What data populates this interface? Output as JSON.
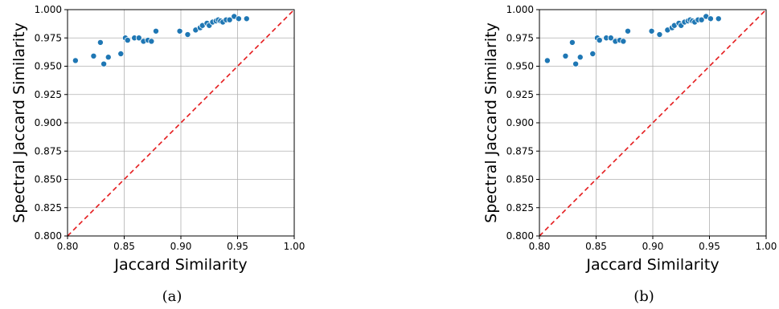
{
  "figure": {
    "panels": [
      {
        "caption": "(a)"
      },
      {
        "caption": "(b)"
      }
    ]
  },
  "chart_data": [
    {
      "type": "scatter",
      "xlabel": "Jaccard Similarity",
      "ylabel": "Spectral Jaccard Similarity",
      "xlim": [
        0.8,
        1.0
      ],
      "ylim": [
        0.8,
        1.0
      ],
      "xticks": [
        "0.80",
        "0.85",
        "0.90",
        "0.95",
        "1.00"
      ],
      "yticks": [
        "0.800",
        "0.825",
        "0.850",
        "0.875",
        "0.900",
        "0.925",
        "0.950",
        "0.975",
        "1.000"
      ],
      "grid": true,
      "point_color": "#1f77b4",
      "reference_line": {
        "style": "dashed",
        "color": "#e41a1c",
        "from": [
          0.8,
          0.8
        ],
        "to": [
          1.0,
          1.0
        ]
      },
      "points": [
        [
          0.807,
          0.955
        ],
        [
          0.823,
          0.959
        ],
        [
          0.829,
          0.971
        ],
        [
          0.832,
          0.952
        ],
        [
          0.836,
          0.958
        ],
        [
          0.847,
          0.961
        ],
        [
          0.851,
          0.975
        ],
        [
          0.853,
          0.973
        ],
        [
          0.859,
          0.975
        ],
        [
          0.863,
          0.975
        ],
        [
          0.867,
          0.972
        ],
        [
          0.871,
          0.973
        ],
        [
          0.874,
          0.972
        ],
        [
          0.878,
          0.981
        ],
        [
          0.899,
          0.981
        ],
        [
          0.906,
          0.978
        ],
        [
          0.913,
          0.982
        ],
        [
          0.917,
          0.984
        ],
        [
          0.919,
          0.986
        ],
        [
          0.923,
          0.988
        ],
        [
          0.925,
          0.986
        ],
        [
          0.928,
          0.989
        ],
        [
          0.931,
          0.99
        ],
        [
          0.933,
          0.991
        ],
        [
          0.935,
          0.99
        ],
        [
          0.937,
          0.989
        ],
        [
          0.94,
          0.991
        ],
        [
          0.943,
          0.991
        ],
        [
          0.947,
          0.994
        ],
        [
          0.951,
          0.992
        ],
        [
          0.958,
          0.992
        ]
      ]
    },
    {
      "type": "scatter",
      "xlabel": "Jaccard Similarity",
      "ylabel": "Spectral Jaccard Similarity",
      "xlim": [
        0.8,
        1.0
      ],
      "ylim": [
        0.8,
        1.0
      ],
      "xticks": [
        "0.80",
        "0.85",
        "0.90",
        "0.95",
        "1.00"
      ],
      "yticks": [
        "0.800",
        "0.825",
        "0.850",
        "0.875",
        "0.900",
        "0.925",
        "0.950",
        "0.975",
        "1.000"
      ],
      "grid": true,
      "point_color": "#1f77b4",
      "reference_line": {
        "style": "dashed",
        "color": "#e41a1c",
        "from": [
          0.8,
          0.8
        ],
        "to": [
          1.0,
          1.0
        ]
      },
      "points": [
        [
          0.807,
          0.955
        ],
        [
          0.823,
          0.959
        ],
        [
          0.829,
          0.971
        ],
        [
          0.832,
          0.952
        ],
        [
          0.836,
          0.958
        ],
        [
          0.847,
          0.961
        ],
        [
          0.851,
          0.975
        ],
        [
          0.853,
          0.973
        ],
        [
          0.859,
          0.975
        ],
        [
          0.863,
          0.975
        ],
        [
          0.867,
          0.972
        ],
        [
          0.871,
          0.973
        ],
        [
          0.874,
          0.972
        ],
        [
          0.878,
          0.981
        ],
        [
          0.899,
          0.981
        ],
        [
          0.906,
          0.978
        ],
        [
          0.913,
          0.982
        ],
        [
          0.917,
          0.984
        ],
        [
          0.919,
          0.986
        ],
        [
          0.923,
          0.988
        ],
        [
          0.925,
          0.986
        ],
        [
          0.928,
          0.989
        ],
        [
          0.931,
          0.99
        ],
        [
          0.933,
          0.991
        ],
        [
          0.935,
          0.99
        ],
        [
          0.937,
          0.989
        ],
        [
          0.94,
          0.991
        ],
        [
          0.943,
          0.991
        ],
        [
          0.947,
          0.994
        ],
        [
          0.951,
          0.992
        ],
        [
          0.958,
          0.992
        ]
      ]
    }
  ]
}
